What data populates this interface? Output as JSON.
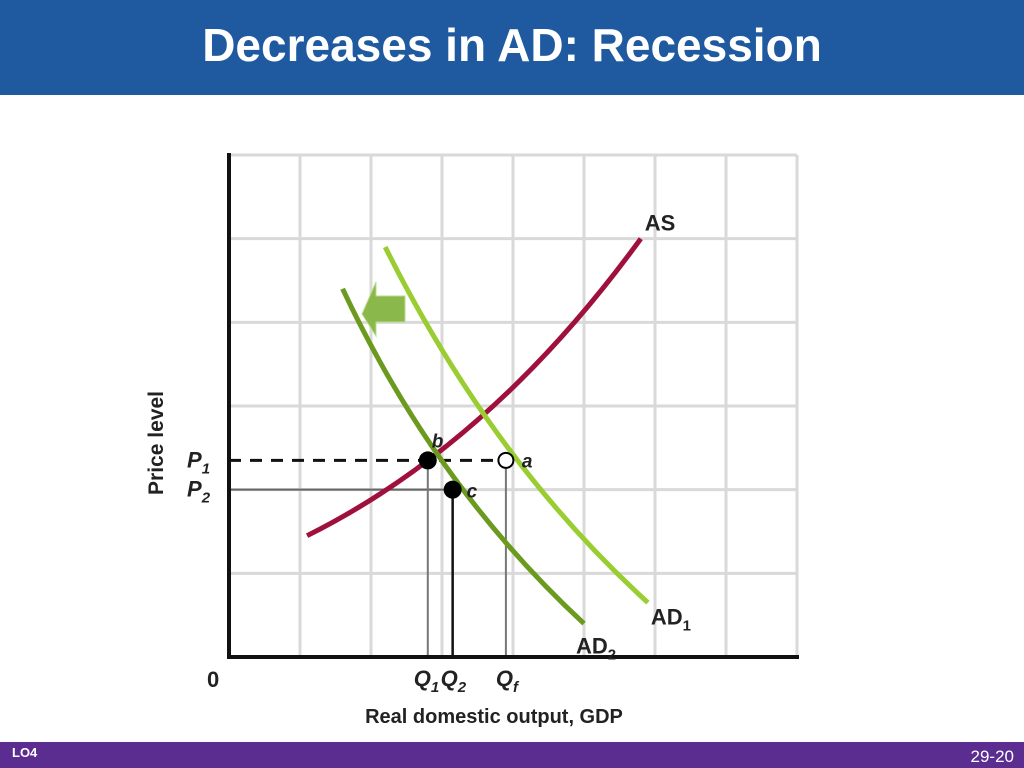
{
  "slide": {
    "title": "Decreases in AD: Recession",
    "footer_left": "LO4",
    "page_number": "29-20"
  },
  "colors": {
    "title_bar": "#1f5aa0",
    "footer_bar": "#5c2d91",
    "as_curve": "#a0103c",
    "ad1_curve": "#9acd32",
    "ad2_curve": "#6b9a1f",
    "shift_arrow": "#8ab84a",
    "grid": "#d9d9d9"
  },
  "chart_data": {
    "type": "line",
    "xlabel": "Real domestic output, GDP",
    "ylabel": "Price level",
    "origin_label": "0",
    "grid": true,
    "series": [
      {
        "name": "AS",
        "key": "as",
        "points": [
          [
            1.1,
            1.45
          ],
          [
            3.7,
            2.55
          ],
          [
            5.8,
            5.0
          ]
        ]
      },
      {
        "name": "AD1",
        "key": "ad1",
        "points": [
          [
            2.2,
            4.9
          ],
          [
            3.7,
            2.35
          ],
          [
            5.9,
            0.65
          ]
        ]
      },
      {
        "name": "AD2",
        "key": "ad2",
        "points": [
          [
            1.6,
            4.4
          ],
          [
            2.9,
            2.05
          ],
          [
            5.0,
            0.4
          ]
        ]
      }
    ],
    "curve_labels": {
      "as": {
        "main": "AS",
        "sub": ""
      },
      "ad1": {
        "main": "AD",
        "sub": "1"
      },
      "ad2": {
        "main": "AD",
        "sub": "2"
      }
    },
    "equilibria": [
      {
        "label": "a",
        "x": 3.9,
        "y": 2.35,
        "style": "open"
      },
      {
        "label": "b",
        "x": 2.8,
        "y": 2.35,
        "style": "filled"
      },
      {
        "label": "c",
        "x": 3.15,
        "y": 2.0,
        "style": "filled"
      }
    ],
    "price_ticks": [
      {
        "main": "P",
        "sub": "1",
        "y": 2.35
      },
      {
        "main": "P",
        "sub": "2",
        "y": 2.0
      }
    ],
    "quantity_ticks": [
      {
        "main": "Q",
        "sub": "1",
        "x": 2.8
      },
      {
        "main": "Q",
        "sub": "2",
        "x": 3.15
      },
      {
        "main": "Q",
        "sub": "f",
        "x": 3.9
      }
    ],
    "shift_arrow": "left",
    "xlim": [
      0,
      8
    ],
    "ylim": [
      0,
      6
    ]
  }
}
